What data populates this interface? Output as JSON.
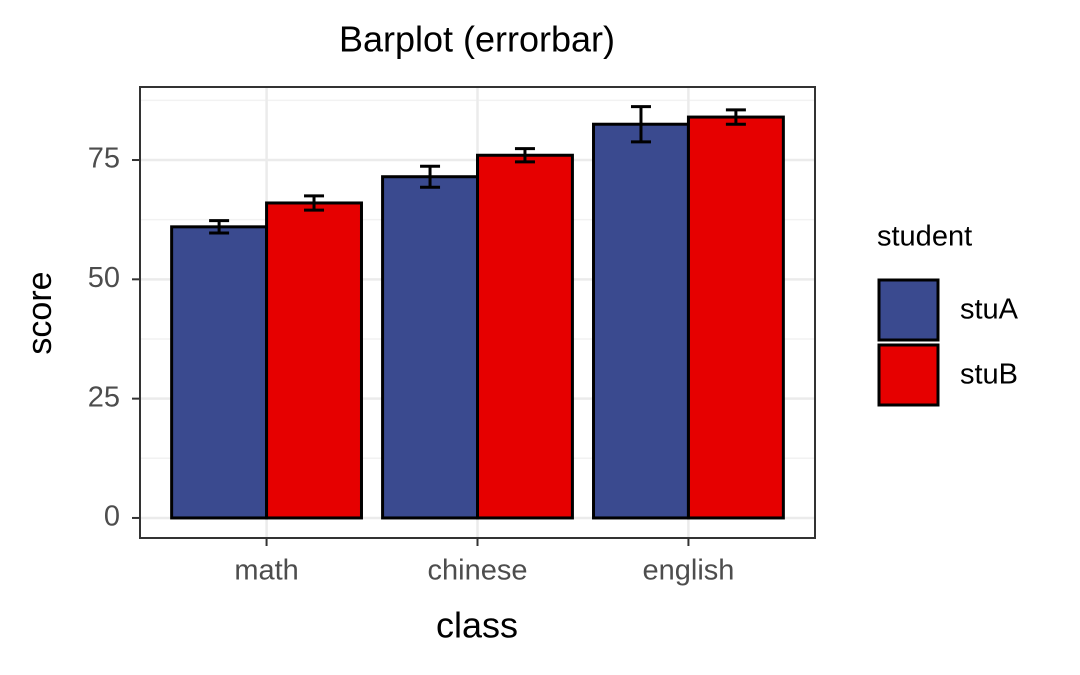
{
  "chart_data": {
    "type": "bar",
    "title": "Barplot (errorbar)",
    "x_label": "class",
    "y_label": "score",
    "categories": [
      "math",
      "chinese",
      "english"
    ],
    "legend_title": "student",
    "legend_position": "right",
    "series": [
      {
        "name": "stuA",
        "color": "#3a4a8f",
        "values": [
          61,
          71.5,
          82.5
        ],
        "errors": [
          1.3,
          2.2,
          3.7
        ]
      },
      {
        "name": "stuB",
        "color": "#e60000",
        "values": [
          66,
          76,
          84
        ],
        "errors": [
          1.5,
          1.4,
          1.5
        ]
      }
    ],
    "ylim": [
      -4.2,
      90.3
    ],
    "yticks": [
      0,
      25,
      50,
      75
    ],
    "y_minor_grid": [
      12.5,
      37.5,
      62.5,
      87.5
    ],
    "grid": true
  }
}
